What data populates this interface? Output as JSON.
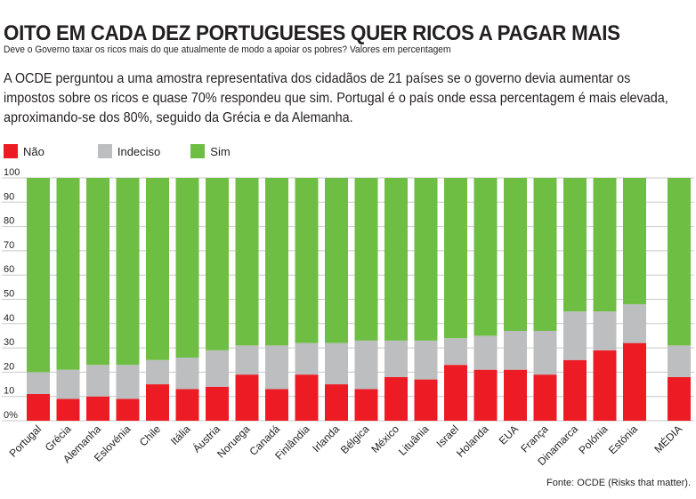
{
  "header": {
    "title": "OITO EM CADA DEZ PORTUGUESES QUER RICOS A PAGAR MAIS",
    "subtitle": "Deve o Governo taxar os ricos mais do que atualmente de modo a apoiar os pobres? Valores em percentagem",
    "intro": "A OCDE perguntou a uma amostra representativa dos cidadãos de 21 países se o governo devia aumentar os impostos sobre os ricos e quase 70% respondeu que sim. Portugal é o país onde essa percentagem é mais elevada, aproximando-se dos 80%, seguido da Grécia e da Alemanha."
  },
  "source": "Fonte: OCDE (Risks that matter).",
  "chart_data": {
    "type": "bar",
    "stacked": true,
    "grid": true,
    "legend_placement": "top-left",
    "ylim": [
      0,
      100
    ],
    "yticks": [
      "0%",
      "10",
      "20",
      "30",
      "40",
      "50",
      "60",
      "70",
      "80",
      "90",
      "100"
    ],
    "categories": [
      "Portugal",
      "Grécia",
      "Alemanha",
      "Eslovénia",
      "Chile",
      "Itália",
      "Áustria",
      "Noruega",
      "Canadá",
      "Finlândia",
      "Irlanda",
      "Bélgica",
      "México",
      "Lituânia",
      "Israel",
      "Holanda",
      "EUA",
      "França",
      "Dinamarca",
      "Polónia",
      "Estónia",
      "MÉDIA"
    ],
    "series": [
      {
        "name": "Não",
        "color": "#ed1c24",
        "values": [
          11,
          9,
          10,
          9,
          15,
          13,
          14,
          19,
          13,
          19,
          15,
          13,
          18,
          17,
          23,
          21,
          21,
          19,
          25,
          29,
          32,
          18
        ]
      },
      {
        "name": "Indeciso",
        "color": "#bcbec0",
        "values": [
          9,
          12,
          13,
          14,
          10,
          13,
          15,
          12,
          18,
          13,
          17,
          20,
          15,
          16,
          11,
          14,
          16,
          18,
          20,
          16,
          16,
          13
        ]
      },
      {
        "name": "Sim",
        "color": "#6fbe44",
        "values": [
          80,
          79,
          77,
          77,
          75,
          74,
          71,
          69,
          69,
          68,
          68,
          67,
          67,
          67,
          66,
          65,
          63,
          63,
          55,
          55,
          52,
          69
        ]
      }
    ]
  }
}
